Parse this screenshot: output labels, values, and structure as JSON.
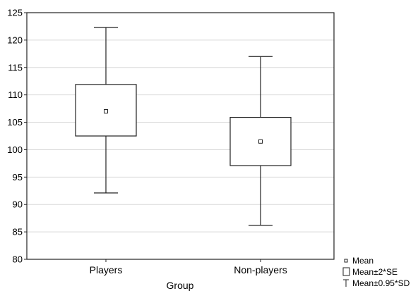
{
  "chart_data": {
    "type": "box",
    "xlabel": "Group",
    "ylabel": "",
    "ylim": [
      80,
      125
    ],
    "yticks": [
      80,
      85,
      90,
      95,
      100,
      105,
      110,
      115,
      120,
      125
    ],
    "grid": true,
    "categories": [
      "Players",
      "Non-players"
    ],
    "series": [
      {
        "category": "Players",
        "mean": 107,
        "box_low": 102.5,
        "box_high": 111.9,
        "whisker_low": 92.1,
        "whisker_high": 122.3
      },
      {
        "category": "Non-players",
        "mean": 101.5,
        "box_low": 97.1,
        "box_high": 105.9,
        "whisker_low": 86.2,
        "whisker_high": 117.0
      }
    ],
    "legend": {
      "placement": "bottom-right",
      "items": [
        {
          "symbol": "mean-marker",
          "label": "Mean"
        },
        {
          "symbol": "box",
          "label": "Mean±2*SE"
        },
        {
          "symbol": "whisker",
          "label": "Mean±0.95*SD"
        }
      ]
    }
  }
}
